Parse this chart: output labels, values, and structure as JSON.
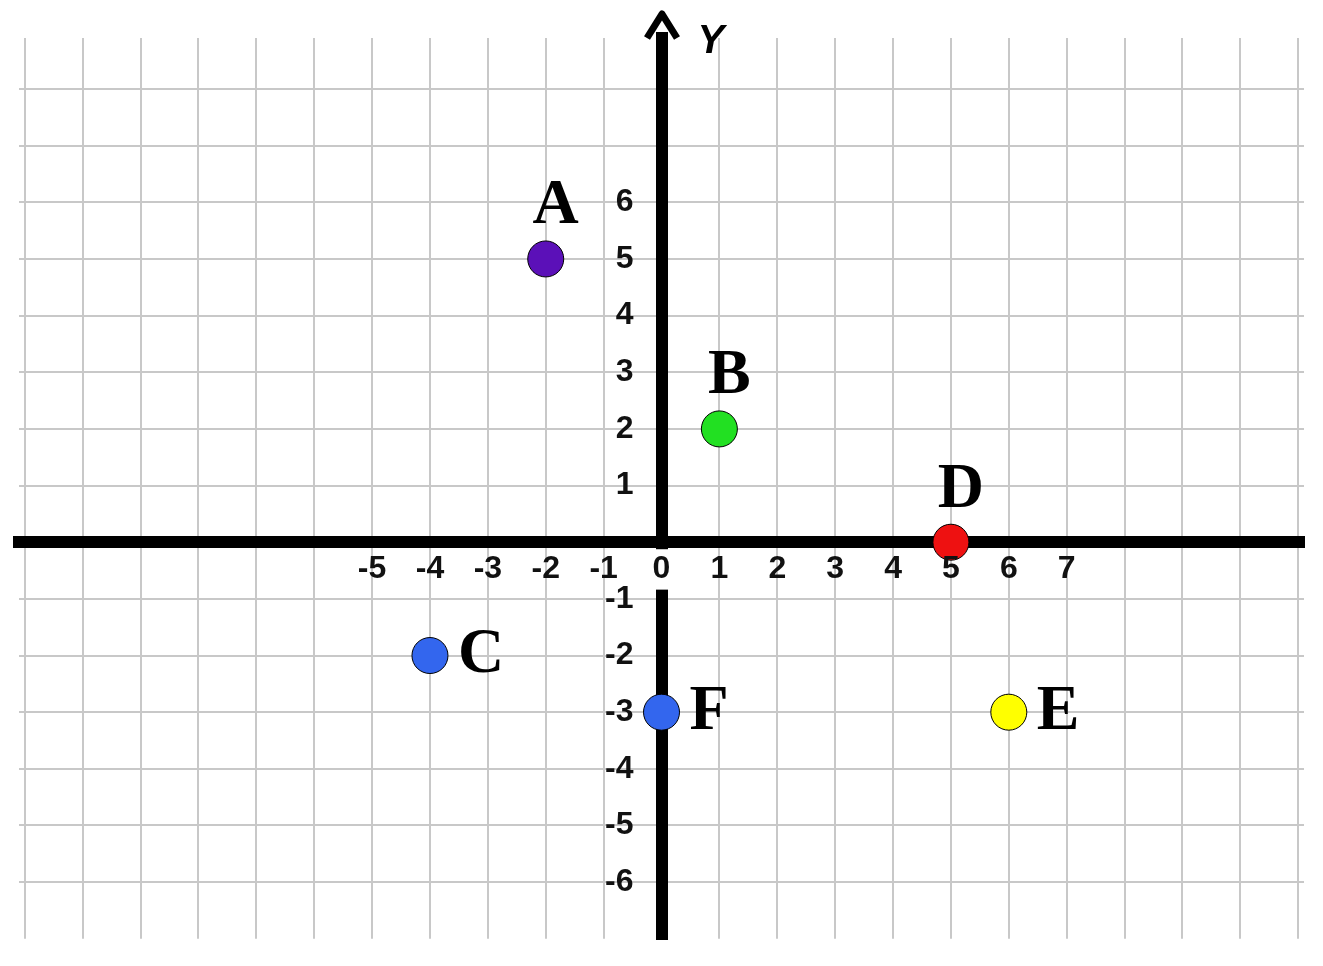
{
  "chart_data": {
    "type": "scatter",
    "ylabel": "Y",
    "x": [
      -2,
      1,
      -4,
      5,
      6,
      0
    ],
    "values": [
      5,
      2,
      -2,
      0,
      -3,
      -3
    ],
    "colors": [
      "#5b10b8",
      "#22e022",
      "#3366ee",
      "#ee1111",
      "#ffff00",
      "#3366ee"
    ],
    "marker": "circle",
    "annotations": [
      {
        "text": "A",
        "x": -2,
        "y": 5
      },
      {
        "text": "B",
        "x": 1,
        "y": 2
      },
      {
        "text": "C",
        "x": -4,
        "y": -2
      },
      {
        "text": "D",
        "x": 5,
        "y": 0
      },
      {
        "text": "E",
        "x": 6,
        "y": -3
      },
      {
        "text": "F",
        "x": 0,
        "y": -3
      }
    ],
    "xlim": [
      -11.1,
      11.1
    ],
    "ylim": [
      -7,
      8.9
    ],
    "xticks": [
      {
        "value": -11,
        "label": null
      },
      {
        "value": -10,
        "label": null
      },
      {
        "value": -9,
        "label": null
      },
      {
        "value": -8,
        "label": null
      },
      {
        "value": -7,
        "label": null
      },
      {
        "value": -6,
        "label": null
      },
      -5,
      -4,
      -3,
      -2,
      -1,
      0,
      1,
      2,
      3,
      4,
      5,
      6,
      7,
      {
        "value": 8,
        "label": null
      },
      {
        "value": 9,
        "label": null
      },
      {
        "value": 10,
        "label": null
      },
      {
        "value": 11,
        "label": null
      }
    ],
    "yticks": [
      -6,
      -5,
      -4,
      -3,
      -2,
      -1,
      {
        "value": 0,
        "label": null
      },
      1,
      2,
      3,
      4,
      5,
      6,
      {
        "value": 7,
        "label": null
      },
      {
        "value": 8,
        "label": null
      }
    ],
    "grid": true
  }
}
